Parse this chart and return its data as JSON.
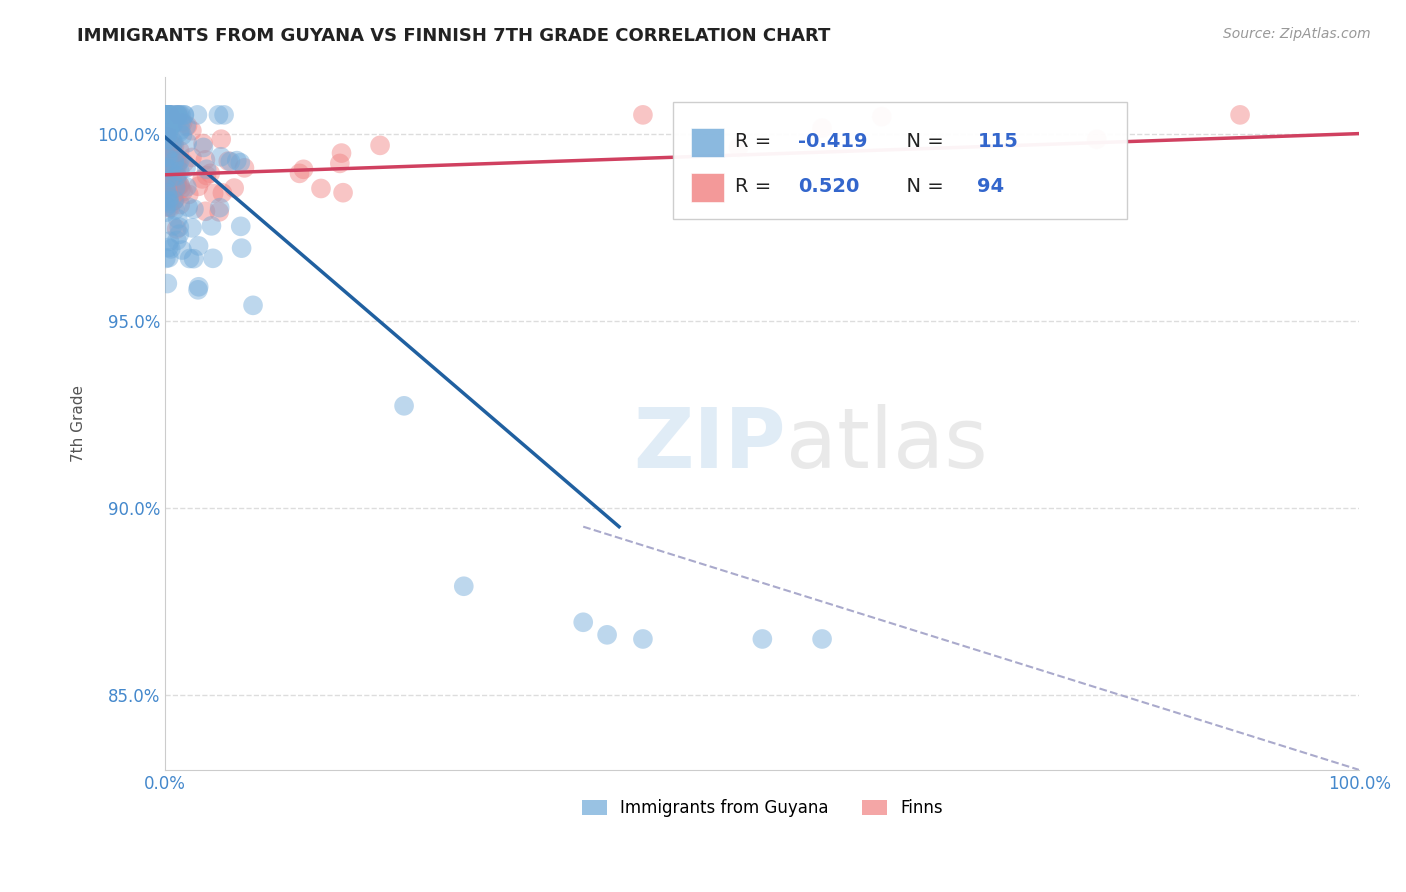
{
  "title": "IMMIGRANTS FROM GUYANA VS FINNISH 7TH GRADE CORRELATION CHART",
  "source": "Source: ZipAtlas.com",
  "ylabel": "7th Grade",
  "xlim": [
    0.0,
    1.0
  ],
  "ylim": [
    0.83,
    1.015
  ],
  "yticks": [
    0.85,
    0.9,
    0.95,
    1.0
  ],
  "yticklabels": [
    "85.0%",
    "90.0%",
    "95.0%",
    "100.0%"
  ],
  "blue_R": -0.419,
  "blue_N": 115,
  "pink_R": 0.52,
  "pink_N": 94,
  "blue_color": "#6ea8d8",
  "pink_color": "#f08080",
  "blue_line_color": "#2060a0",
  "pink_line_color": "#d04060",
  "legend_label_blue": "Immigrants from Guyana",
  "legend_label_pink": "Finns",
  "background_color": "#ffffff",
  "grid_color": "#dddddd"
}
